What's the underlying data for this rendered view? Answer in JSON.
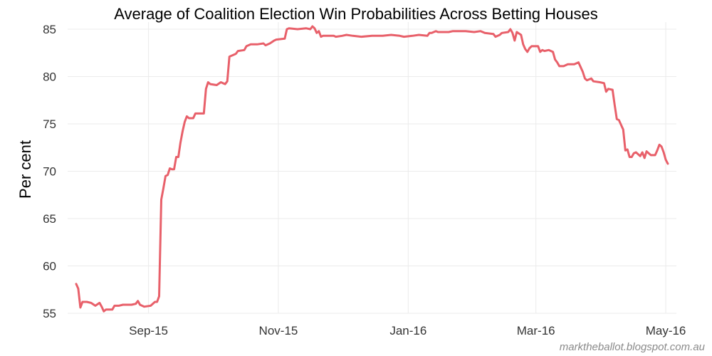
{
  "chart_data": {
    "type": "line",
    "title": "Average of Coalition Election Win Probabilities Across Betting Houses",
    "xlabel": "",
    "ylabel": "Per cent",
    "credit": "marktheballot.blogspot.com.au",
    "ylim": [
      55,
      85
    ],
    "yticks": [
      55,
      60,
      65,
      70,
      75,
      80,
      85
    ],
    "xlim": [
      "2015-07-25",
      "2016-05-06"
    ],
    "xticks": [
      {
        "label": "Sep-15",
        "date": "2015-09-01"
      },
      {
        "label": "Nov-15",
        "date": "2015-11-01"
      },
      {
        "label": "Jan-16",
        "date": "2016-01-01"
      },
      {
        "label": "Mar-16",
        "date": "2016-03-01"
      },
      {
        "label": "May-16",
        "date": "2016-05-01"
      }
    ],
    "grid": true,
    "series": [
      {
        "color": "#e8606a",
        "points": [
          [
            "2015-07-29",
            58.1
          ],
          [
            "2015-07-30",
            57.6
          ],
          [
            "2015-07-31",
            55.6
          ],
          [
            "2015-08-01",
            56.2
          ],
          [
            "2015-08-03",
            56.2
          ],
          [
            "2015-08-05",
            56.1
          ],
          [
            "2015-08-07",
            55.8
          ],
          [
            "2015-08-09",
            56.1
          ],
          [
            "2015-08-10",
            55.7
          ],
          [
            "2015-08-11",
            55.2
          ],
          [
            "2015-08-12",
            55.4
          ],
          [
            "2015-08-14",
            55.4
          ],
          [
            "2015-08-15",
            55.4
          ],
          [
            "2015-08-16",
            55.8
          ],
          [
            "2015-08-18",
            55.8
          ],
          [
            "2015-08-20",
            55.9
          ],
          [
            "2015-08-24",
            55.9
          ],
          [
            "2015-08-26",
            56.0
          ],
          [
            "2015-08-27",
            56.3
          ],
          [
            "2015-08-28",
            55.9
          ],
          [
            "2015-08-30",
            55.7
          ],
          [
            "2015-09-02",
            55.8
          ],
          [
            "2015-09-04",
            56.2
          ],
          [
            "2015-09-05",
            56.2
          ],
          [
            "2015-09-06",
            56.8
          ],
          [
            "2015-09-07",
            67.0
          ],
          [
            "2015-09-08",
            68.2
          ],
          [
            "2015-09-09",
            69.5
          ],
          [
            "2015-09-10",
            69.6
          ],
          [
            "2015-09-11",
            70.3
          ],
          [
            "2015-09-12",
            70.2
          ],
          [
            "2015-09-13",
            70.2
          ],
          [
            "2015-09-14",
            71.5
          ],
          [
            "2015-09-15",
            71.5
          ],
          [
            "2015-09-16",
            73.0
          ],
          [
            "2015-09-17",
            74.2
          ],
          [
            "2015-09-18",
            75.2
          ],
          [
            "2015-09-19",
            75.8
          ],
          [
            "2015-09-20",
            75.6
          ],
          [
            "2015-09-22",
            75.6
          ],
          [
            "2015-09-23",
            76.1
          ],
          [
            "2015-09-27",
            76.1
          ],
          [
            "2015-09-28",
            78.7
          ],
          [
            "2015-09-29",
            79.4
          ],
          [
            "2015-09-30",
            79.2
          ],
          [
            "2015-10-03",
            79.1
          ],
          [
            "2015-10-05",
            79.4
          ],
          [
            "2015-10-07",
            79.2
          ],
          [
            "2015-10-08",
            79.5
          ],
          [
            "2015-10-09",
            82.1
          ],
          [
            "2015-10-10",
            82.2
          ],
          [
            "2015-10-12",
            82.4
          ],
          [
            "2015-10-13",
            82.7
          ],
          [
            "2015-10-16",
            82.8
          ],
          [
            "2015-10-17",
            83.2
          ],
          [
            "2015-10-19",
            83.4
          ],
          [
            "2015-10-22",
            83.4
          ],
          [
            "2015-10-25",
            83.5
          ],
          [
            "2015-10-26",
            83.3
          ],
          [
            "2015-10-28",
            83.5
          ],
          [
            "2015-10-30",
            83.8
          ],
          [
            "2015-10-31",
            83.9
          ],
          [
            "2015-11-04",
            84.0
          ],
          [
            "2015-11-05",
            85.0
          ],
          [
            "2015-11-06",
            85.1
          ],
          [
            "2015-11-10",
            85.0
          ],
          [
            "2015-11-14",
            85.1
          ],
          [
            "2015-11-16",
            85.0
          ],
          [
            "2015-11-17",
            85.3
          ],
          [
            "2015-11-18",
            85.1
          ],
          [
            "2015-11-19",
            84.6
          ],
          [
            "2015-11-20",
            84.8
          ],
          [
            "2015-11-21",
            84.2
          ],
          [
            "2015-11-22",
            84.3
          ],
          [
            "2015-11-27",
            84.3
          ],
          [
            "2015-11-28",
            84.2
          ],
          [
            "2015-12-01",
            84.3
          ],
          [
            "2015-12-03",
            84.4
          ],
          [
            "2015-12-06",
            84.3
          ],
          [
            "2015-12-10",
            84.2
          ],
          [
            "2015-12-15",
            84.3
          ],
          [
            "2015-12-20",
            84.3
          ],
          [
            "2015-12-24",
            84.4
          ],
          [
            "2015-12-28",
            84.3
          ],
          [
            "2015-12-30",
            84.2
          ],
          [
            "2016-01-03",
            84.3
          ],
          [
            "2016-01-06",
            84.4
          ],
          [
            "2016-01-10",
            84.3
          ],
          [
            "2016-01-11",
            84.6
          ],
          [
            "2016-01-12",
            84.6
          ],
          [
            "2016-01-14",
            84.8
          ],
          [
            "2016-01-15",
            84.7
          ],
          [
            "2016-01-20",
            84.7
          ],
          [
            "2016-01-22",
            84.8
          ],
          [
            "2016-01-28",
            84.8
          ],
          [
            "2016-02-01",
            84.7
          ],
          [
            "2016-02-04",
            84.8
          ],
          [
            "2016-02-06",
            84.6
          ],
          [
            "2016-02-10",
            84.5
          ],
          [
            "2016-02-11",
            84.2
          ],
          [
            "2016-02-13",
            84.4
          ],
          [
            "2016-02-14",
            84.6
          ],
          [
            "2016-02-17",
            84.7
          ],
          [
            "2016-02-18",
            85.0
          ],
          [
            "2016-02-19",
            84.6
          ],
          [
            "2016-02-20",
            83.8
          ],
          [
            "2016-02-21",
            84.7
          ],
          [
            "2016-02-23",
            84.4
          ],
          [
            "2016-02-24",
            83.4
          ],
          [
            "2016-02-25",
            82.9
          ],
          [
            "2016-02-26",
            82.6
          ],
          [
            "2016-02-27",
            83.0
          ],
          [
            "2016-02-28",
            83.2
          ],
          [
            "2016-03-02",
            83.2
          ],
          [
            "2016-03-03",
            82.6
          ],
          [
            "2016-03-04",
            82.8
          ],
          [
            "2016-03-05",
            82.7
          ],
          [
            "2016-03-07",
            82.8
          ],
          [
            "2016-03-09",
            82.6
          ],
          [
            "2016-03-10",
            81.8
          ],
          [
            "2016-03-11",
            81.5
          ],
          [
            "2016-03-12",
            81.1
          ],
          [
            "2016-03-14",
            81.1
          ],
          [
            "2016-03-16",
            81.3
          ],
          [
            "2016-03-19",
            81.3
          ],
          [
            "2016-03-21",
            81.5
          ],
          [
            "2016-03-22",
            81.0
          ],
          [
            "2016-03-23",
            80.5
          ],
          [
            "2016-03-24",
            79.8
          ],
          [
            "2016-03-25",
            79.6
          ],
          [
            "2016-03-27",
            79.8
          ],
          [
            "2016-03-28",
            79.5
          ],
          [
            "2016-03-31",
            79.4
          ],
          [
            "2016-04-02",
            79.3
          ],
          [
            "2016-04-03",
            78.4
          ],
          [
            "2016-04-04",
            78.7
          ],
          [
            "2016-04-06",
            78.6
          ],
          [
            "2016-04-07",
            77.0
          ],
          [
            "2016-04-08",
            75.5
          ],
          [
            "2016-04-09",
            75.4
          ],
          [
            "2016-04-11",
            74.4
          ],
          [
            "2016-04-12",
            72.2
          ],
          [
            "2016-04-13",
            72.3
          ],
          [
            "2016-04-14",
            71.5
          ],
          [
            "2016-04-15",
            71.5
          ],
          [
            "2016-04-16",
            71.9
          ],
          [
            "2016-04-17",
            72.0
          ],
          [
            "2016-04-19",
            71.6
          ],
          [
            "2016-04-20",
            72.0
          ],
          [
            "2016-04-21",
            71.4
          ],
          [
            "2016-04-22",
            72.1
          ],
          [
            "2016-04-24",
            71.7
          ],
          [
            "2016-04-26",
            71.7
          ],
          [
            "2016-04-27",
            72.2
          ],
          [
            "2016-04-28",
            72.8
          ],
          [
            "2016-04-29",
            72.6
          ],
          [
            "2016-04-30",
            72.0
          ],
          [
            "2016-05-01",
            71.2
          ],
          [
            "2016-05-02",
            70.8
          ]
        ]
      }
    ]
  }
}
